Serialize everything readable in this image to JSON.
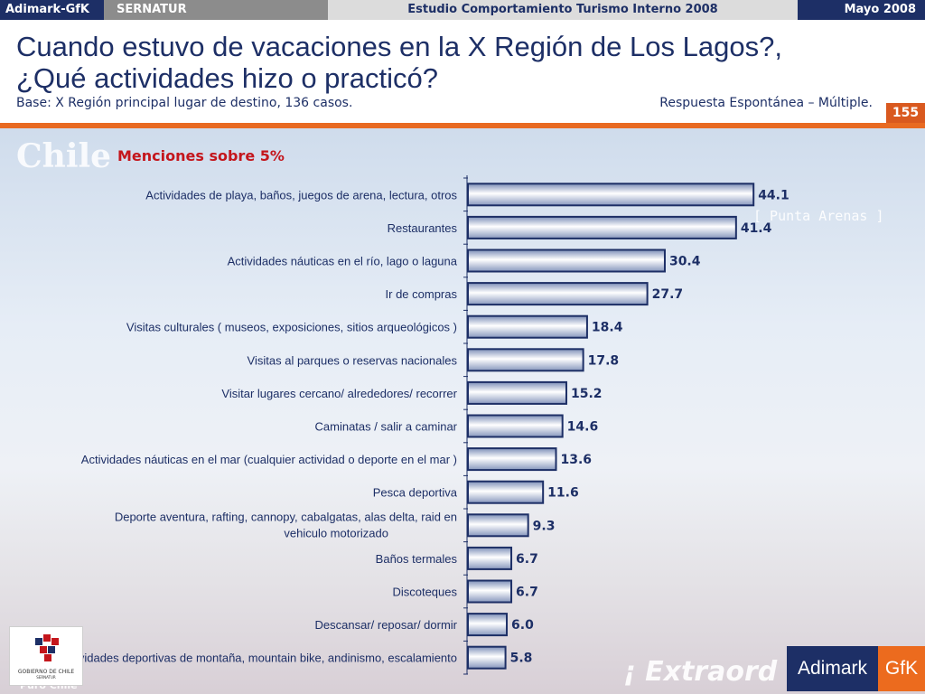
{
  "topbar": {
    "brand": "Adimark-GfK",
    "client": "SERNATUR",
    "study": "Estudio Comportamiento Turismo Interno 2008",
    "date": "Mayo 2008"
  },
  "header": {
    "title_line1": "Cuando estuvo de vacaciones en la X Región de Los Lagos?,",
    "title_line2": "¿Qué actividades hizo o practicó?",
    "base": "Base: X Región principal lugar de destino, 136 casos.",
    "response_type": "Respuesta Espontánea – Múltiple.",
    "page_number": "155"
  },
  "background_text": {
    "chile": "Chile",
    "puerto": "[ Punta Arenas ]",
    "extra": "¡ Extraord",
    "puro": "Puro Chile"
  },
  "chart_data": {
    "type": "bar",
    "orientation": "horizontal",
    "title": "Menciones sobre 5%",
    "categories": [
      "Actividades de playa, baños, juegos de arena, lectura, otros",
      "Restaurantes",
      "Actividades náuticas en el río, lago o laguna",
      "Ir de compras",
      "Visitas culturales ( museos, exposiciones, sitios arqueológicos )",
      "Visitas al parques o reservas nacionales",
      "Visitar lugares cercano/ alrededores/ recorrer",
      "Caminatas / salir a caminar",
      "Actividades náuticas en el mar (cualquier actividad o deporte en el mar )",
      "Pesca deportiva",
      "Deporte aventura, rafting, cannopy, cabalgatas, alas delta, raid en vehiculo motorizado",
      "Baños termales",
      "Discoteques",
      "Descansar/ reposar/ dormir",
      "Actividades deportivas de montaña, mountain bike, andinismo, escalamiento"
    ],
    "values": [
      44.1,
      41.4,
      30.4,
      27.7,
      18.4,
      17.8,
      15.2,
      14.6,
      13.6,
      11.6,
      9.3,
      6.7,
      6.7,
      6.0,
      5.8
    ],
    "value_labels": [
      "44.1",
      "41.4",
      "30.4",
      "27.7",
      "18.4",
      "17.8",
      "15.2",
      "14.6",
      "13.6",
      "11.6",
      "9.3",
      "6.7",
      "6.7",
      "6.0",
      "5.8"
    ],
    "xlim": [
      0,
      60
    ],
    "bar_color": "#1d2f66",
    "grid": false,
    "legend": "none"
  },
  "logos": {
    "gov_line1": "GOBIERNO DE CHILE",
    "gov_line2": "SERNATUR",
    "adimark": "Adimark",
    "gfk": "GfK"
  },
  "colors": {
    "navy": "#1d2f66",
    "orange": "#e86a22",
    "red_title": "#c4161c"
  }
}
